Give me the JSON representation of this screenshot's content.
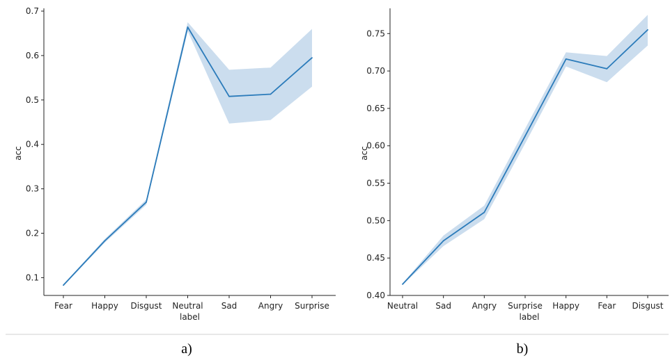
{
  "colors": {
    "line": "#2b7bba",
    "band": "#a9c7e3",
    "axis": "#222222",
    "separator": "#d0d0d0"
  },
  "chart_data": [
    {
      "type": "line",
      "caption": "a)",
      "xlabel": "label",
      "ylabel": "acc",
      "categories": [
        "Fear",
        "Happy",
        "Disgust",
        "Neutral",
        "Sad",
        "Angry",
        "Surprise"
      ],
      "values": [
        0.083,
        0.183,
        0.27,
        0.664,
        0.508,
        0.513,
        0.595
      ],
      "ci_lower": [
        0.081,
        0.179,
        0.264,
        0.655,
        0.447,
        0.455,
        0.53
      ],
      "ci_upper": [
        0.085,
        0.187,
        0.276,
        0.675,
        0.568,
        0.573,
        0.66
      ],
      "ylim": [
        0.06,
        0.7
      ],
      "yticks": [
        0.1,
        0.2,
        0.3,
        0.4,
        0.5,
        0.6,
        0.7
      ],
      "ytick_labels": [
        "0.1",
        "0.2",
        "0.3",
        "0.4",
        "0.5",
        "0.6",
        "0.7"
      ]
    },
    {
      "type": "line",
      "caption": "b)",
      "xlabel": "label",
      "ylabel": "acc",
      "categories": [
        "Neutral",
        "Sad",
        "Angry",
        "Surprise",
        "Happy",
        "Fear",
        "Disgust"
      ],
      "values": [
        0.415,
        0.473,
        0.511,
        0.613,
        0.716,
        0.703,
        0.755
      ],
      "ci_lower": [
        0.414,
        0.466,
        0.502,
        0.603,
        0.706,
        0.685,
        0.734
      ],
      "ci_upper": [
        0.416,
        0.48,
        0.52,
        0.623,
        0.725,
        0.72,
        0.775
      ],
      "ylim": [
        0.4,
        0.78
      ],
      "yticks": [
        0.4,
        0.45,
        0.5,
        0.55,
        0.6,
        0.65,
        0.7,
        0.75
      ],
      "ytick_labels": [
        "0.40",
        "0.45",
        "0.50",
        "0.55",
        "0.60",
        "0.65",
        "0.70",
        "0.75"
      ]
    }
  ]
}
